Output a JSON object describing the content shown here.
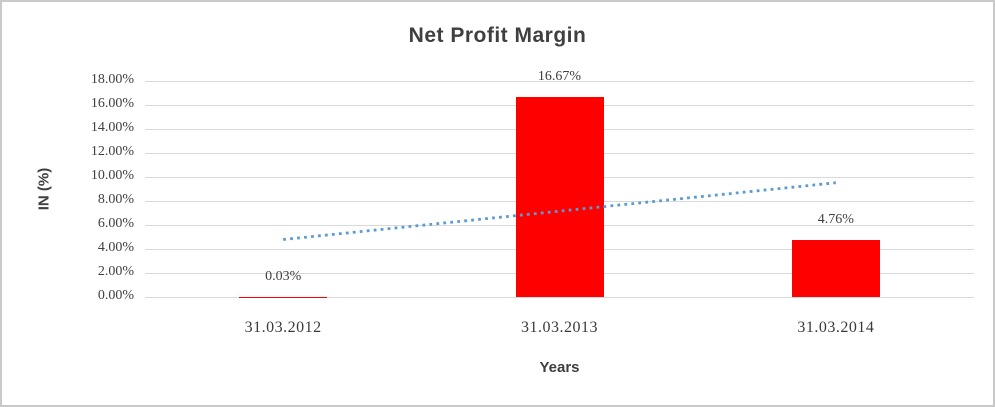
{
  "frame": {
    "background_color": "#ffffff",
    "border_color": "#c9c9c9"
  },
  "chart_data": {
    "type": "bar",
    "title": "Net Profit Margin",
    "xlabel": "Years",
    "ylabel": "IN (%)",
    "categories": [
      "31.03.2012",
      "31.03.2013",
      "31.03.2014"
    ],
    "values": [
      0.03,
      16.67,
      4.76
    ],
    "data_labels": [
      "0.03%",
      "16.67%",
      "4.76%"
    ],
    "ylim": [
      0,
      18
    ],
    "ytick_step": 2,
    "ytick_labels": [
      "18.00%",
      "16.00%",
      "14.00%",
      "12.00%",
      "10.00%",
      "8.00%",
      "6.00%",
      "4.00%",
      "2.00%",
      "0.00%"
    ],
    "grid": true,
    "legend": false,
    "bar_color": "#ff0000",
    "gridline_color": "#d9d9d9",
    "title_color": "#3f3f3f",
    "tick_color": "#404040",
    "trendline": {
      "style": "dotted",
      "color": "#5b9bd5",
      "start_category": "31.03.2012",
      "end_category": "31.03.2014",
      "start_value_pct": 4.79,
      "end_value_pct": 9.52
    }
  }
}
